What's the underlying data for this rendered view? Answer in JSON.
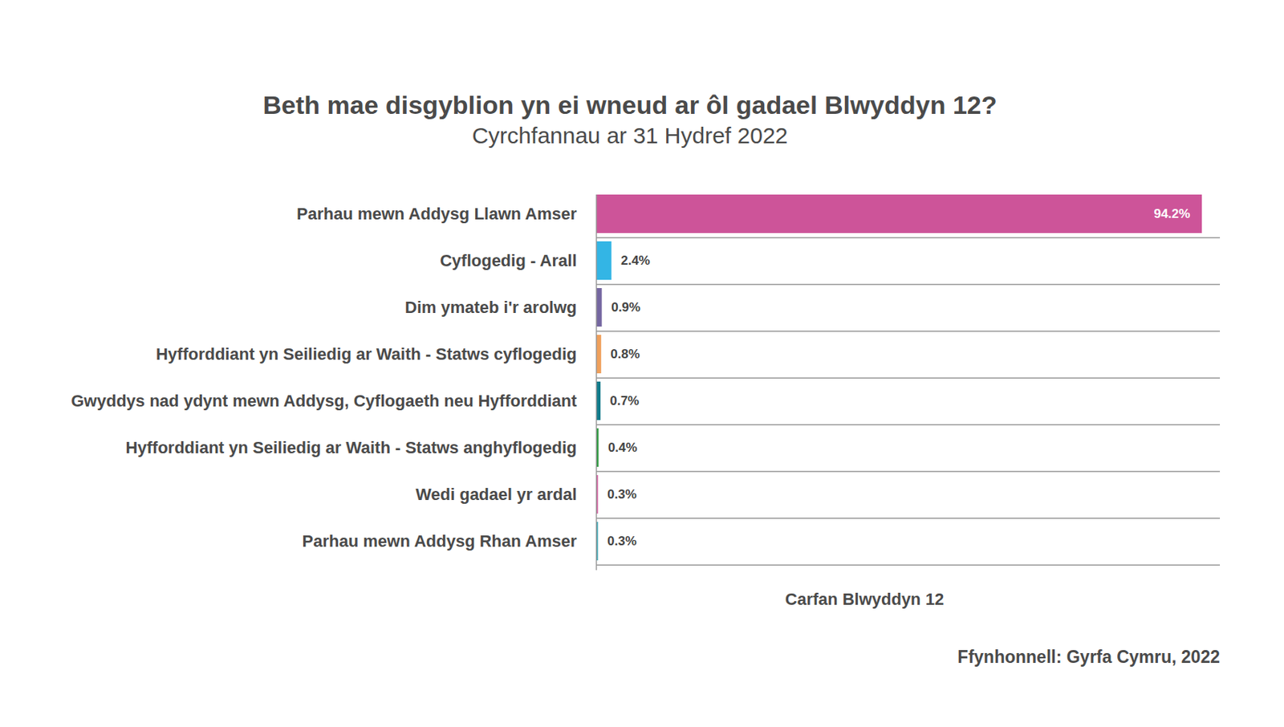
{
  "chart_data": {
    "type": "bar",
    "orientation": "horizontal",
    "title": "Beth mae disgyblion yn ei wneud ar ôl gadael Blwyddyn 12?",
    "subtitle": "Cyrchfannau ar 31 Hydref 2022",
    "xlabel": "Carfan Blwyddyn 12",
    "source": "Ffynhonnell: Gyrfa Cymru, 2022",
    "categories": [
      "Parhau mewn Addysg Llawn Amser",
      "Cyflogedig - Arall",
      "Dim ymateb i'r arolwg",
      "Hyfforddiant yn Seiliedig ar Waith - Statws cyflogedig",
      "Gwyddys nad ydynt mewn Addysg, Cyflogaeth neu Hyfforddiant",
      "Hyfforddiant yn Seiliedig ar Waith - Statws anghyflogedig",
      "Wedi gadael yr ardal",
      "Parhau mewn Addysg Rhan Amser"
    ],
    "values": [
      94.2,
      2.4,
      0.9,
      0.8,
      0.7,
      0.4,
      0.3,
      0.3
    ],
    "value_labels": [
      "94.2%",
      "2.4%",
      "0.9%",
      "0.8%",
      "0.7%",
      "0.4%",
      "0.3%",
      "0.3%"
    ],
    "colors": [
      "#cd5499",
      "#33b5e5",
      "#7466a0",
      "#f0a05a",
      "#0e7a8a",
      "#2a9a3c",
      "#d34f9a",
      "#2aa0b0"
    ],
    "xlim": [
      0,
      97
    ],
    "data_labels": true,
    "tick_labels": "y",
    "grid": true
  }
}
